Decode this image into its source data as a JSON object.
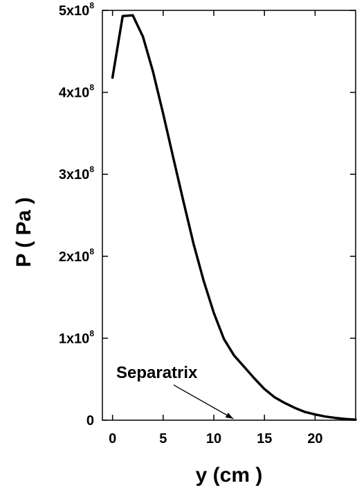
{
  "chart_data": {
    "type": "line",
    "xlabel": "y (cm )",
    "ylabel": "P ( Pa )",
    "xlim": [
      -1,
      24
    ],
    "ylim": [
      0,
      500000000
    ],
    "grid": false,
    "x_ticks": [
      {
        "value": 0,
        "label": "0"
      },
      {
        "value": 5,
        "label": "5"
      },
      {
        "value": 10,
        "label": "10"
      },
      {
        "value": 15,
        "label": "15"
      },
      {
        "value": 20,
        "label": "20"
      }
    ],
    "y_ticks": [
      {
        "value": 0,
        "base": "0",
        "exp": ""
      },
      {
        "value": 100000000,
        "base": "1x10",
        "exp": "8"
      },
      {
        "value": 200000000,
        "base": "2x10",
        "exp": "8"
      },
      {
        "value": 300000000,
        "base": "3x10",
        "exp": "8"
      },
      {
        "value": 400000000,
        "base": "4x10",
        "exp": "8"
      },
      {
        "value": 500000000,
        "base": "5x10",
        "exp": "8"
      }
    ],
    "series": [
      {
        "x": [
          0,
          1,
          2,
          3,
          4,
          5,
          6,
          7,
          8,
          9,
          10,
          11,
          12,
          13,
          14,
          15,
          16,
          17,
          18,
          19,
          20,
          21,
          22,
          23,
          24
        ],
        "y": [
          418000000,
          493000000,
          494000000,
          468000000,
          425000000,
          374000000,
          320000000,
          267000000,
          215000000,
          170000000,
          131000000,
          99000000,
          79000000,
          65000000,
          51000000,
          38000000,
          28000000,
          21000000,
          15000000,
          10000000,
          7000000,
          4500000,
          2800000,
          1500000,
          700000
        ]
      }
    ],
    "annotations": [
      {
        "text": "Separatrix",
        "arrow_to": {
          "x": 12,
          "y": 0
        }
      }
    ]
  }
}
